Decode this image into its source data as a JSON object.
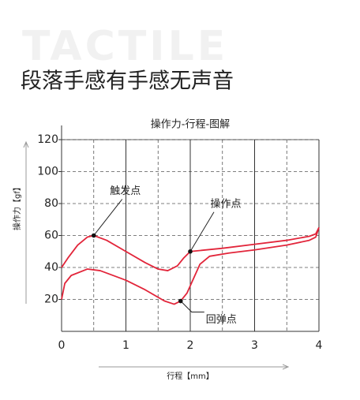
{
  "watermark": "TACTILE",
  "heading": "段落手感有手感无声音",
  "chart_data": {
    "type": "line",
    "title": "操作力-行程-图解",
    "y_label": "操作力【gf】",
    "x_label": "行程【mm】",
    "xlim": [
      0,
      4
    ],
    "xticks": [
      0,
      1,
      2,
      3,
      4
    ],
    "ylim": [
      0,
      120
    ],
    "yticks": [
      20,
      40,
      60,
      80,
      100,
      120
    ],
    "grid": true,
    "series": [
      {
        "color": "#e2253a",
        "x": [
          0,
          0.1,
          0.25,
          0.4,
          0.5,
          0.7,
          1,
          1.3,
          1.5,
          1.65,
          1.8,
          1.9,
          2,
          2.5,
          3,
          3.5,
          3.85,
          3.95,
          4
        ],
        "values": [
          40,
          46,
          54,
          59,
          60,
          57,
          50,
          43,
          39,
          38,
          41,
          46,
          50,
          52,
          54.5,
          57,
          59.5,
          61,
          65
        ]
      },
      {
        "color": "#e2253a",
        "x": [
          0,
          0.05,
          0.15,
          0.4,
          0.6,
          1,
          1.3,
          1.6,
          1.75,
          1.85,
          1.95,
          2.05,
          2.15,
          2.3,
          2.6,
          3,
          3.5,
          3.85,
          3.95,
          4
        ],
        "values": [
          20,
          30,
          35,
          39,
          38,
          32,
          26,
          19,
          17,
          19,
          24,
          33,
          42,
          47,
          49,
          51,
          54,
          57,
          59,
          65
        ]
      }
    ],
    "annotations": [
      {
        "text": "触发点",
        "x": 0.5,
        "y": 60
      },
      {
        "text": "操作点",
        "x": 2,
        "y": 50
      },
      {
        "text": "回弹点",
        "x": 1.85,
        "y": 19
      }
    ]
  }
}
